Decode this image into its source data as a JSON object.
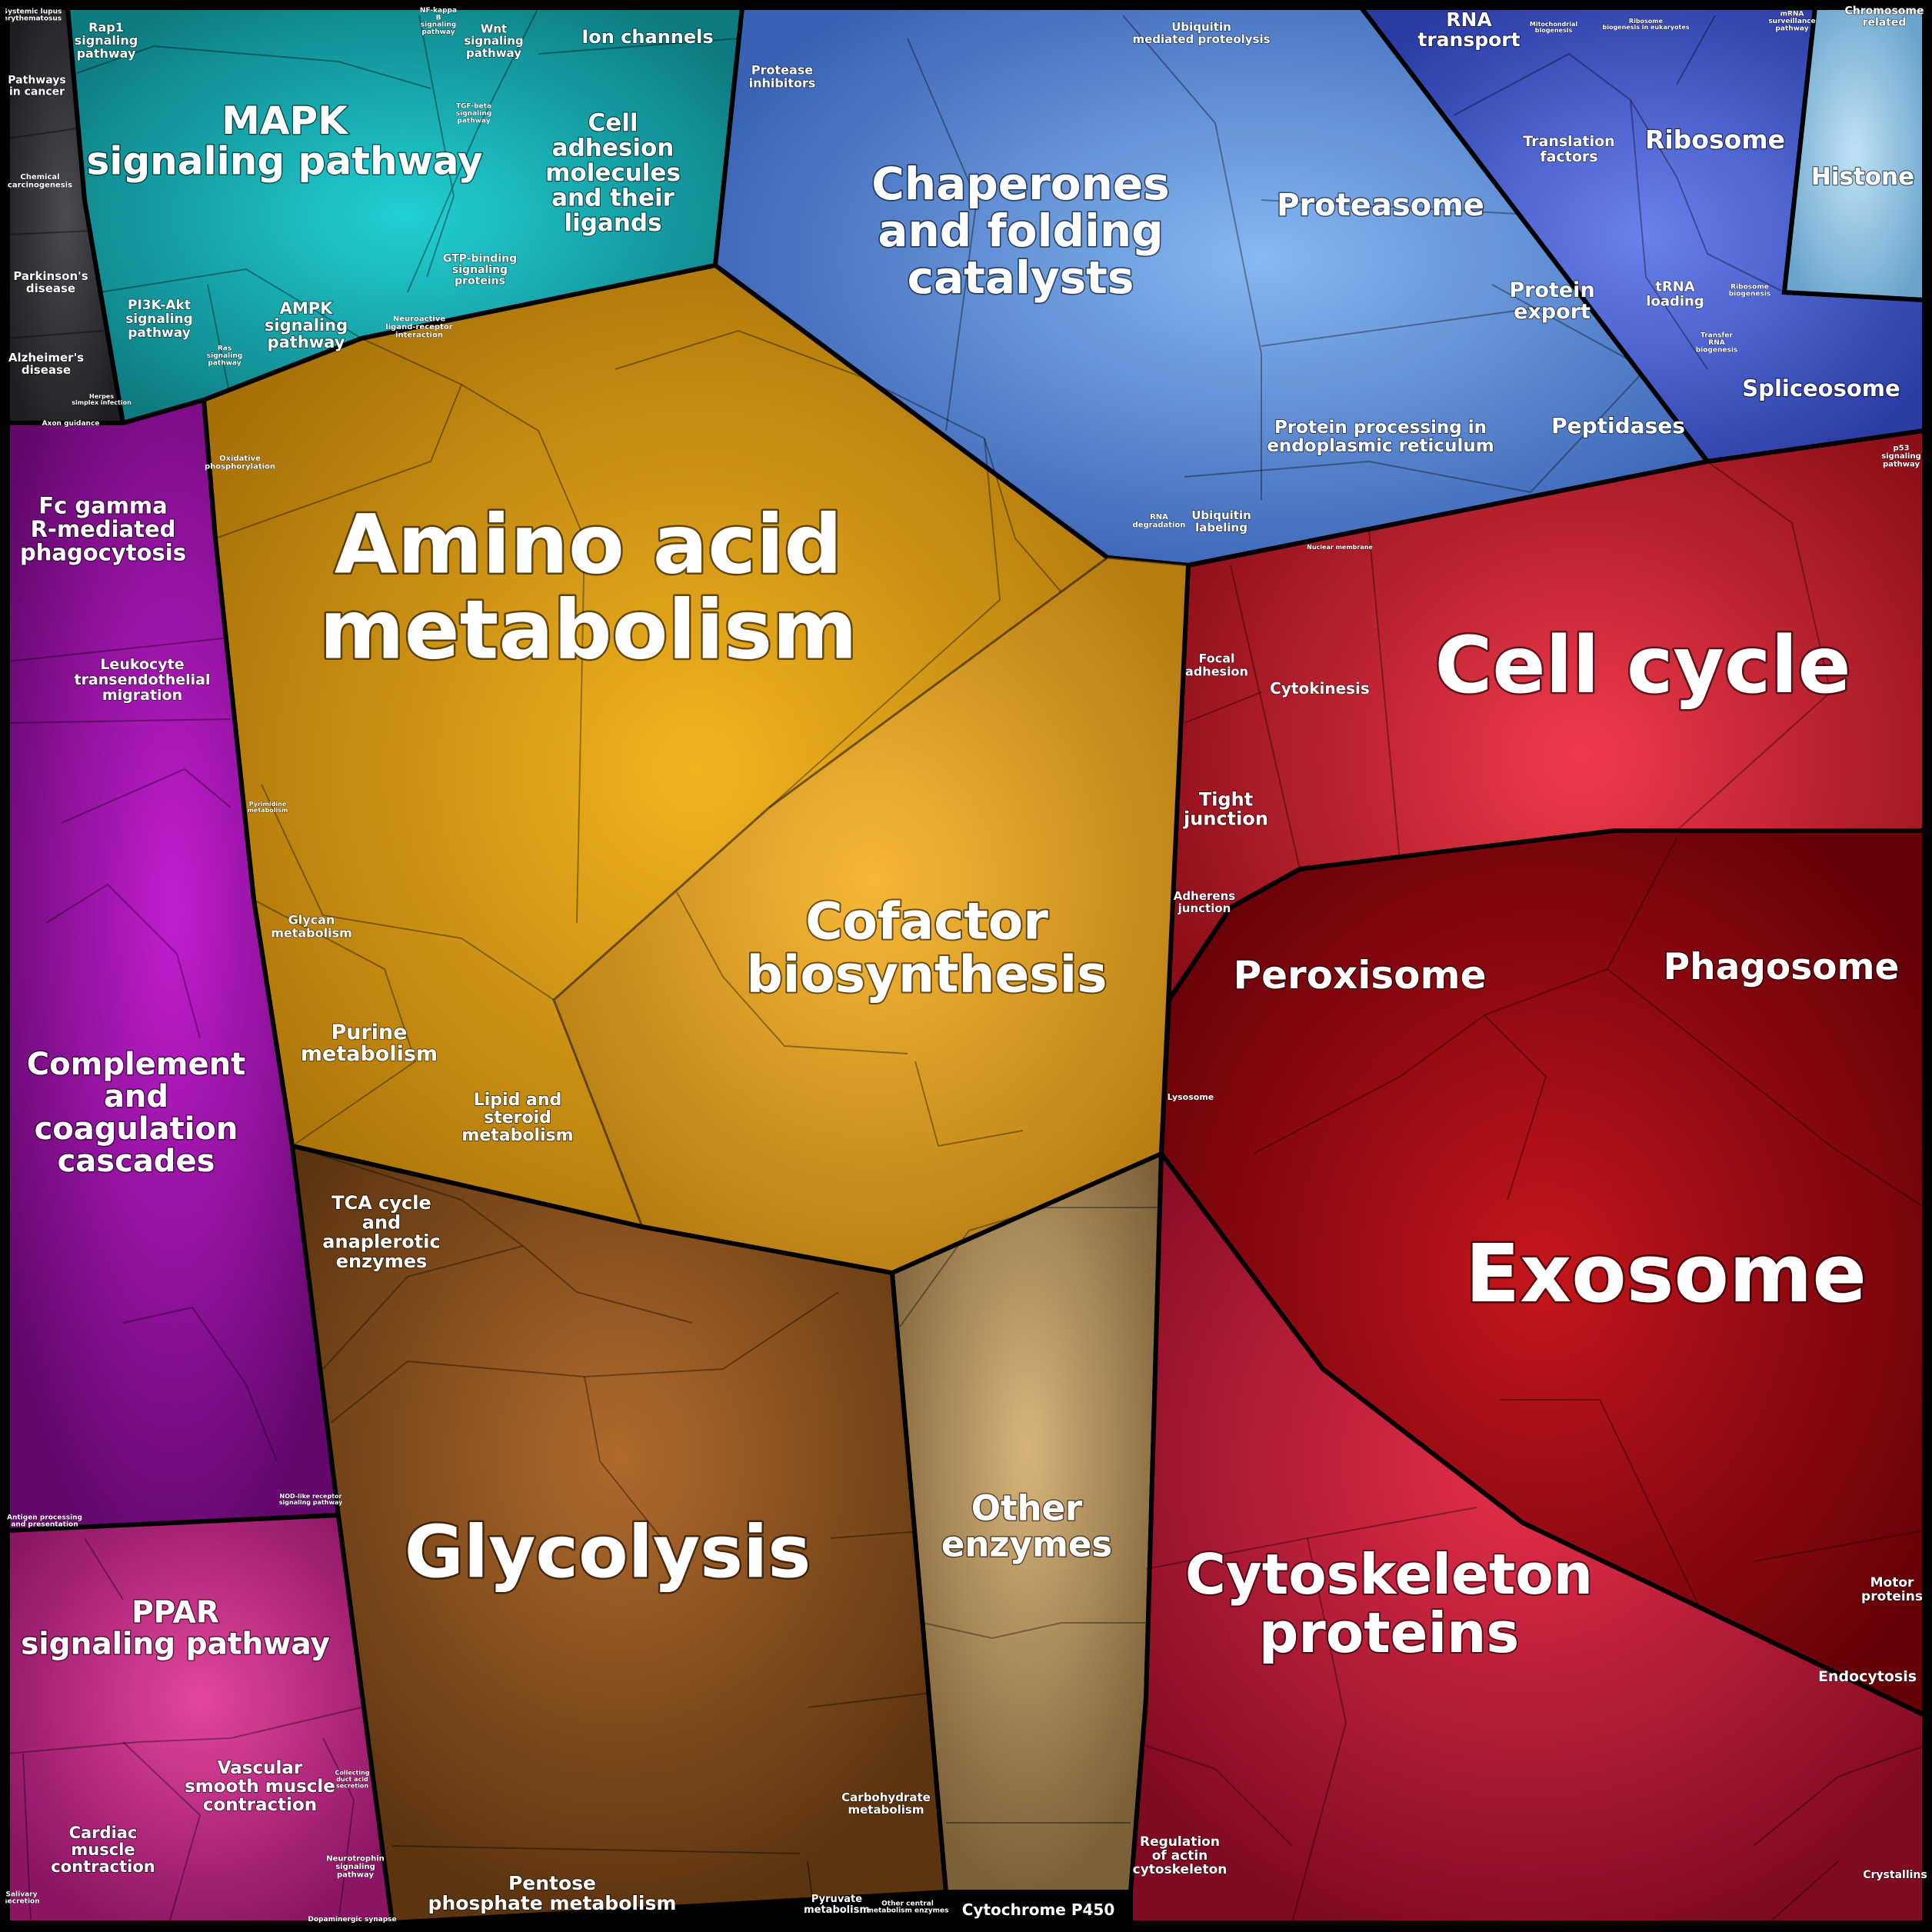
{
  "colors": {
    "signaling": "#1aa3a8",
    "disease": "#3a3a3e",
    "chaperones": "#4f86d6",
    "ribosome": "#3e58c9",
    "histone": "#8ec4e8",
    "amino": "#d49a17",
    "phago": "#9c1aa8",
    "ppar": "#c2288a",
    "glyco": "#8a4e1c",
    "other_enz": "#a68a5a",
    "cellcycle": "#c8202e",
    "exosome": "#a80c16",
    "cytoskel": "#c01530"
  },
  "labels": {
    "systemic_lupus": "Systemic lupus erythematosus",
    "pathways_cancer": "Pathways in cancer",
    "chemical_carcino": "Chemical carcinogenesis",
    "parkinsons": "Parkinson's disease",
    "alzheimers": "Alzheimer's disease",
    "herpes": "Herpes simplex infection",
    "rap1": "Rap1 signaling pathway",
    "mapk": "MAPK signaling pathway",
    "nfkb": "NF-kappa B signaling pathway",
    "wnt": "Wnt signaling pathway",
    "tgfb": "TGF-beta signaling pathway",
    "ion_channels": "Ion channels",
    "cell_adhesion": "Cell adhesion molecules and their ligands",
    "pi3k": "PI3K-Akt signaling pathway",
    "ras": "Ras signaling pathway",
    "ampk": "AMPK signaling pathway",
    "gtp": "GTP-binding signaling proteins",
    "neuroactive": "Neuroactive ligand-receptor interaction",
    "axon": "Axon guidance",
    "protease_inh": "Protease inhibitors",
    "ubiquitin_prot": "Ubiquitin mediated proteolysis",
    "chaperones": "Chaperones and folding catalysts",
    "proteasome": "Proteasome",
    "protein_export": "Protein export",
    "protein_er": "Protein processing in endoplasmic reticulum",
    "peptidases": "Peptidases",
    "rna_degradation": "RNA degradation",
    "ubiquitin_label": "Ubiquitin labeling",
    "rna_transport": "RNA transport",
    "mito_bio": "Mitochondrial biogenesis",
    "ribo_bio_euk": "Ribosome biogenesis in eukaryotes",
    "mrna_surv": "mRNA surveillance pathway",
    "chromosome": "Chromosome related",
    "translation": "Translation factors",
    "ribosome": "Ribosome",
    "histone": "Histone",
    "trna": "tRNA loading",
    "ribo_bio": "Ribosome biogenesis",
    "transfer_rna": "Transfer RNA biogenesis",
    "spliceosome": "Spliceosome",
    "p53": "p53 signaling pathway",
    "nuclear_membrane": "Nuclear membrane",
    "oxidative": "Oxidative phosphorylation",
    "amino_acid": "Amino acid metabolism",
    "pyrimidine": "Pyrimidine metabolism",
    "glycan": "Glycan metabolism",
    "purine": "Purine metabolism",
    "lipid": "Lipid and steroid metabolism",
    "cofactor": "Cofactor biosynthesis",
    "fc_gamma": "Fc gamma R-mediated phagocytosis",
    "leukocyte": "Leukocyte transendothelial migration",
    "complement": "Complement and coagulation cascades",
    "nod": "NOD-like receptor signaling pathway",
    "antigen": "Antigen processing and presentation",
    "ppar": "PPAR signaling pathway",
    "vascular": "Vascular smooth muscle contraction",
    "cardiac": "Cardiac muscle contraction",
    "neurotrophin": "Neurotrophin signaling pathway",
    "dopaminergic": "Dopaminergic synapse",
    "salivary": "Salivary secretion",
    "collecting_duct": "Collecting duct acid secretion",
    "tca": "TCA cycle and anaplerotic enzymes",
    "glycolysis": "Glycolysis",
    "pentose": "Pentose phosphate metabolism",
    "carbohydrate": "Carbohydrate metabolism",
    "pyruvate": "Pyruvate metabolism",
    "other_central": "Other central metabolism enzymes",
    "other_enzymes": "Other enzymes",
    "cyp450": "Cytochrome P450",
    "focal": "Focal adhesion",
    "cytokinesis": "Cytokinesis",
    "cell_cycle": "Cell cycle",
    "tight": "Tight junction",
    "adherens": "Adherens junction",
    "peroxisome": "Peroxisome",
    "phagosome": "Phagosome",
    "lysosome": "Lysosome",
    "exosome": "Exosome",
    "cytoskeleton": "Cytoskeleton proteins",
    "actin": "Regulation of actin cytoskeleton",
    "motor": "Motor proteins",
    "endocytosis": "Endocytosis",
    "crystallins": "Crystallins"
  }
}
